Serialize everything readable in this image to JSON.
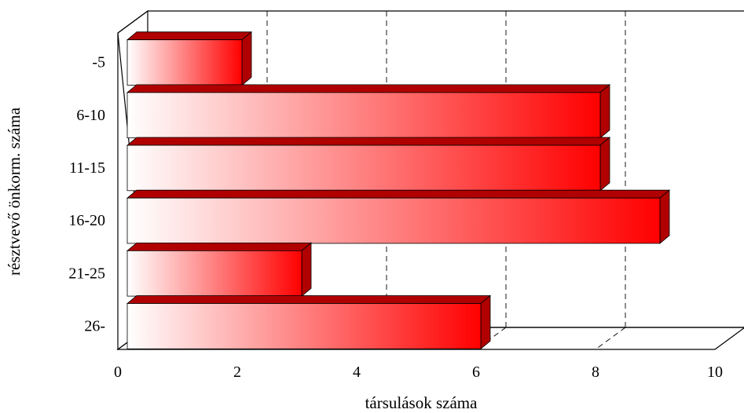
{
  "chart_data": {
    "type": "bar",
    "orientation": "horizontal",
    "three_d": true,
    "categories": [
      "-5",
      "6-10",
      "11-15",
      "16-20",
      "21-25",
      "26-"
    ],
    "values": [
      2,
      8,
      8,
      9,
      3,
      6
    ],
    "xlabel": "társulások száma",
    "ylabel": "résztvevő önkorm. száma",
    "xlim": [
      0,
      10
    ],
    "xticks": [
      "0",
      "2",
      "4",
      "6",
      "8",
      "10"
    ],
    "grid": "vertical-dashed",
    "legend": "none",
    "bar_color": "#ff0000",
    "bar_dark": "#b00000"
  }
}
